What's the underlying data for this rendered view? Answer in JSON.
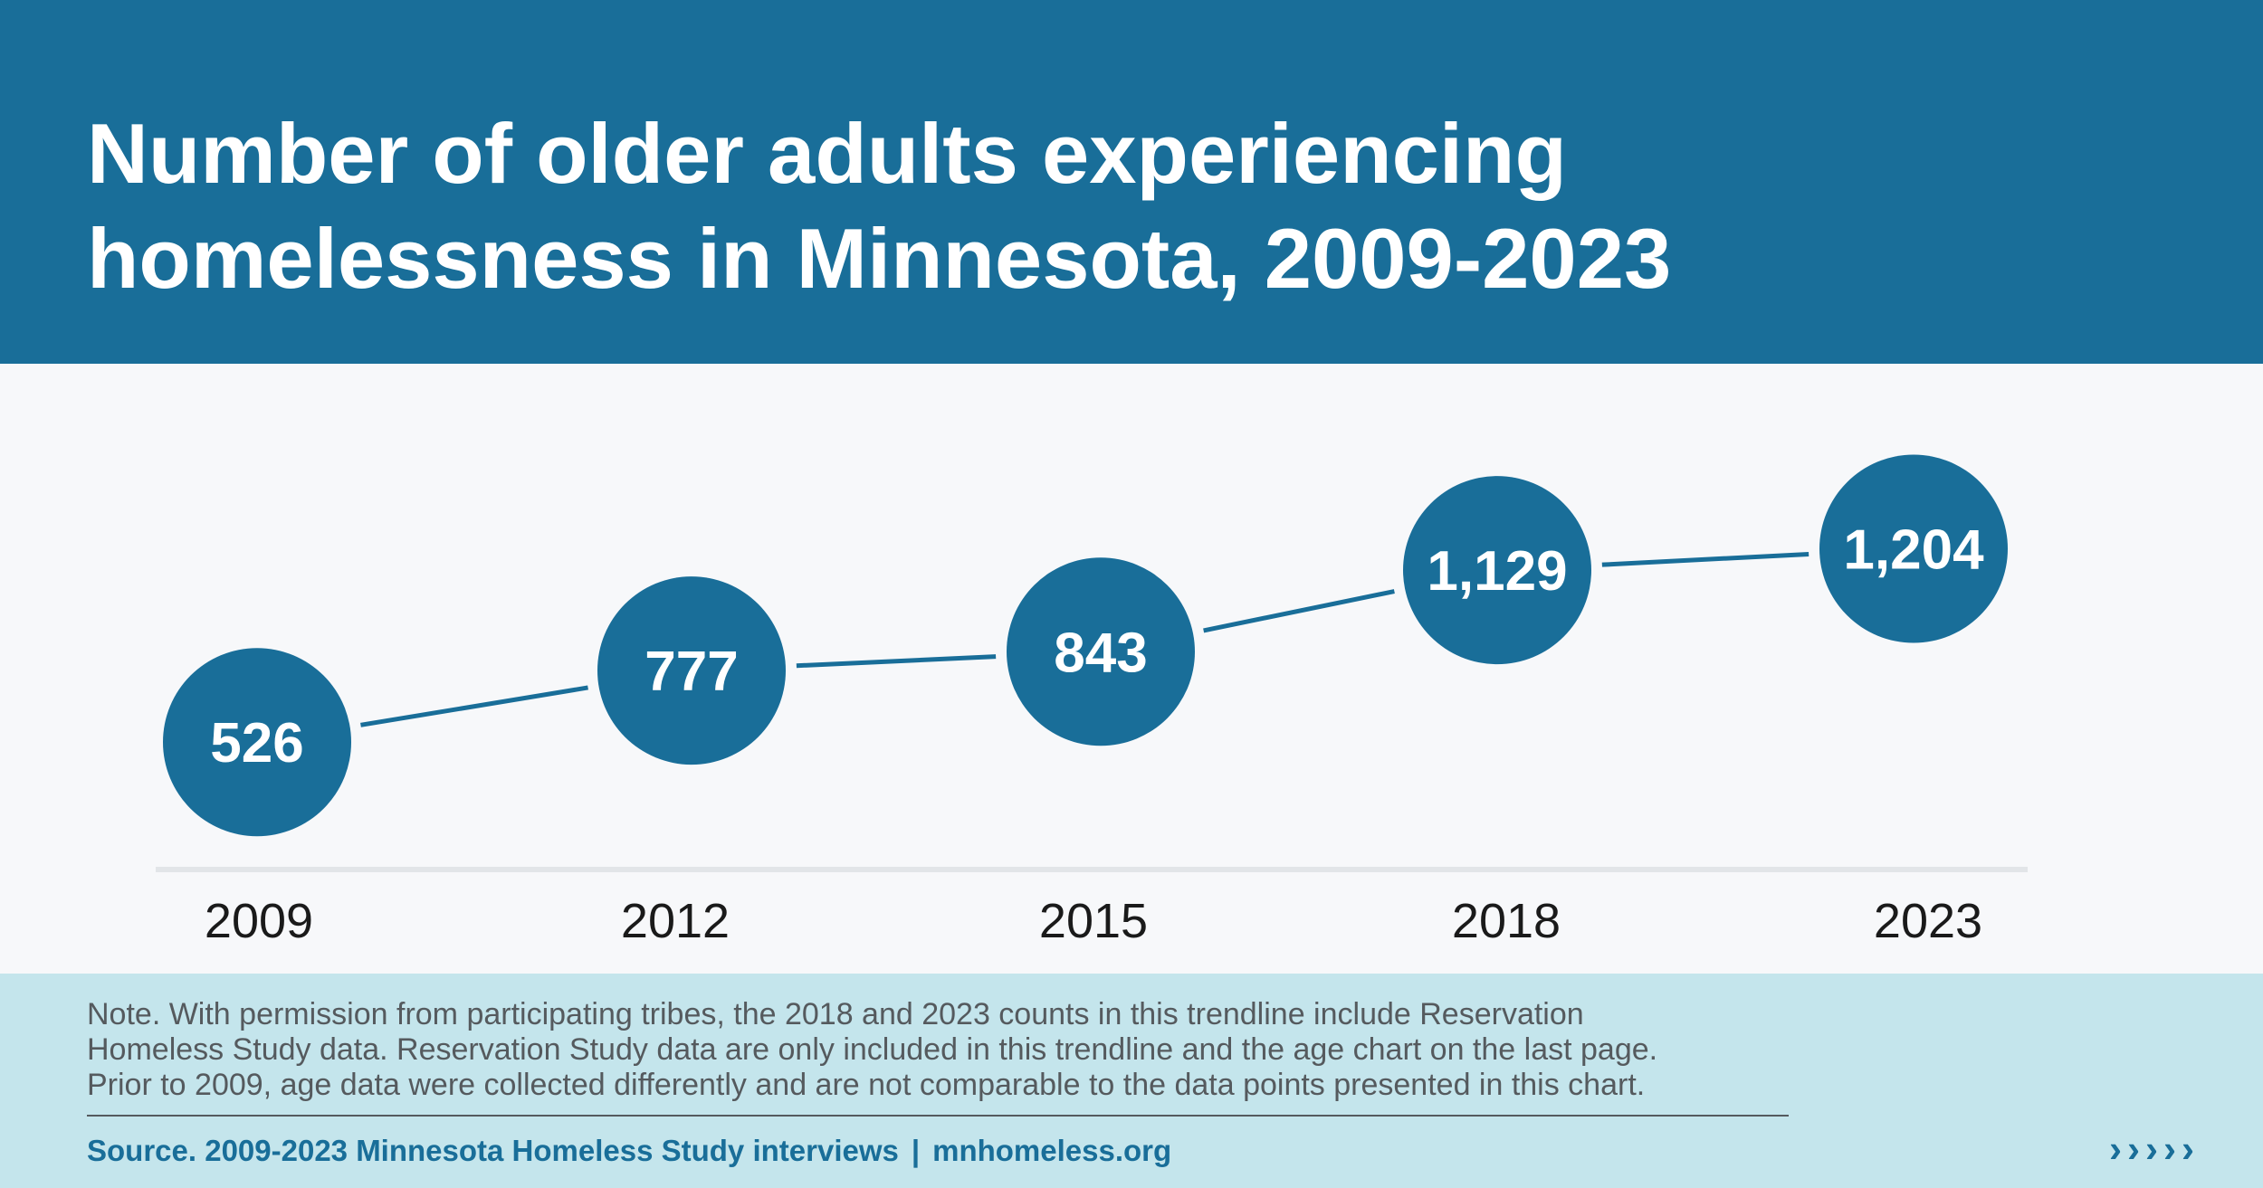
{
  "header": {
    "title_line1": "Number of older adults experiencing",
    "title_line2": "homelessness in Minnesota, 2009-2023"
  },
  "chart_data": {
    "type": "line",
    "categories": [
      "2009",
      "2012",
      "2015",
      "2018",
      "2023"
    ],
    "values": [
      526,
      777,
      843,
      1129,
      1204
    ],
    "labels": [
      "526",
      "777",
      "843",
      "1,129",
      "1,204"
    ],
    "xlabel": "",
    "ylabel": "",
    "grid": false,
    "legend": "none",
    "colors": {
      "marker": "#196e99",
      "line": "#196e99",
      "axis": "#e2e5e8",
      "label": "#ffffff",
      "tick": "#1a1a1a"
    }
  },
  "footer": {
    "note_line1": "Note. With permission from participating tribes, the 2018 and 2023 counts in this trendline include Reservation",
    "note_line2": "Homeless Study data. Reservation Study data are only included in this trendline and the age chart on the last page.",
    "note_line3": "Prior to 2009, age data were collected differently and are not comparable to the data points presented in this chart.",
    "source_text": "Source. 2009-2023 Minnesota Homeless Study interviews",
    "separator": "|",
    "site": "mnhomeless.org",
    "arrows": "›››››"
  }
}
